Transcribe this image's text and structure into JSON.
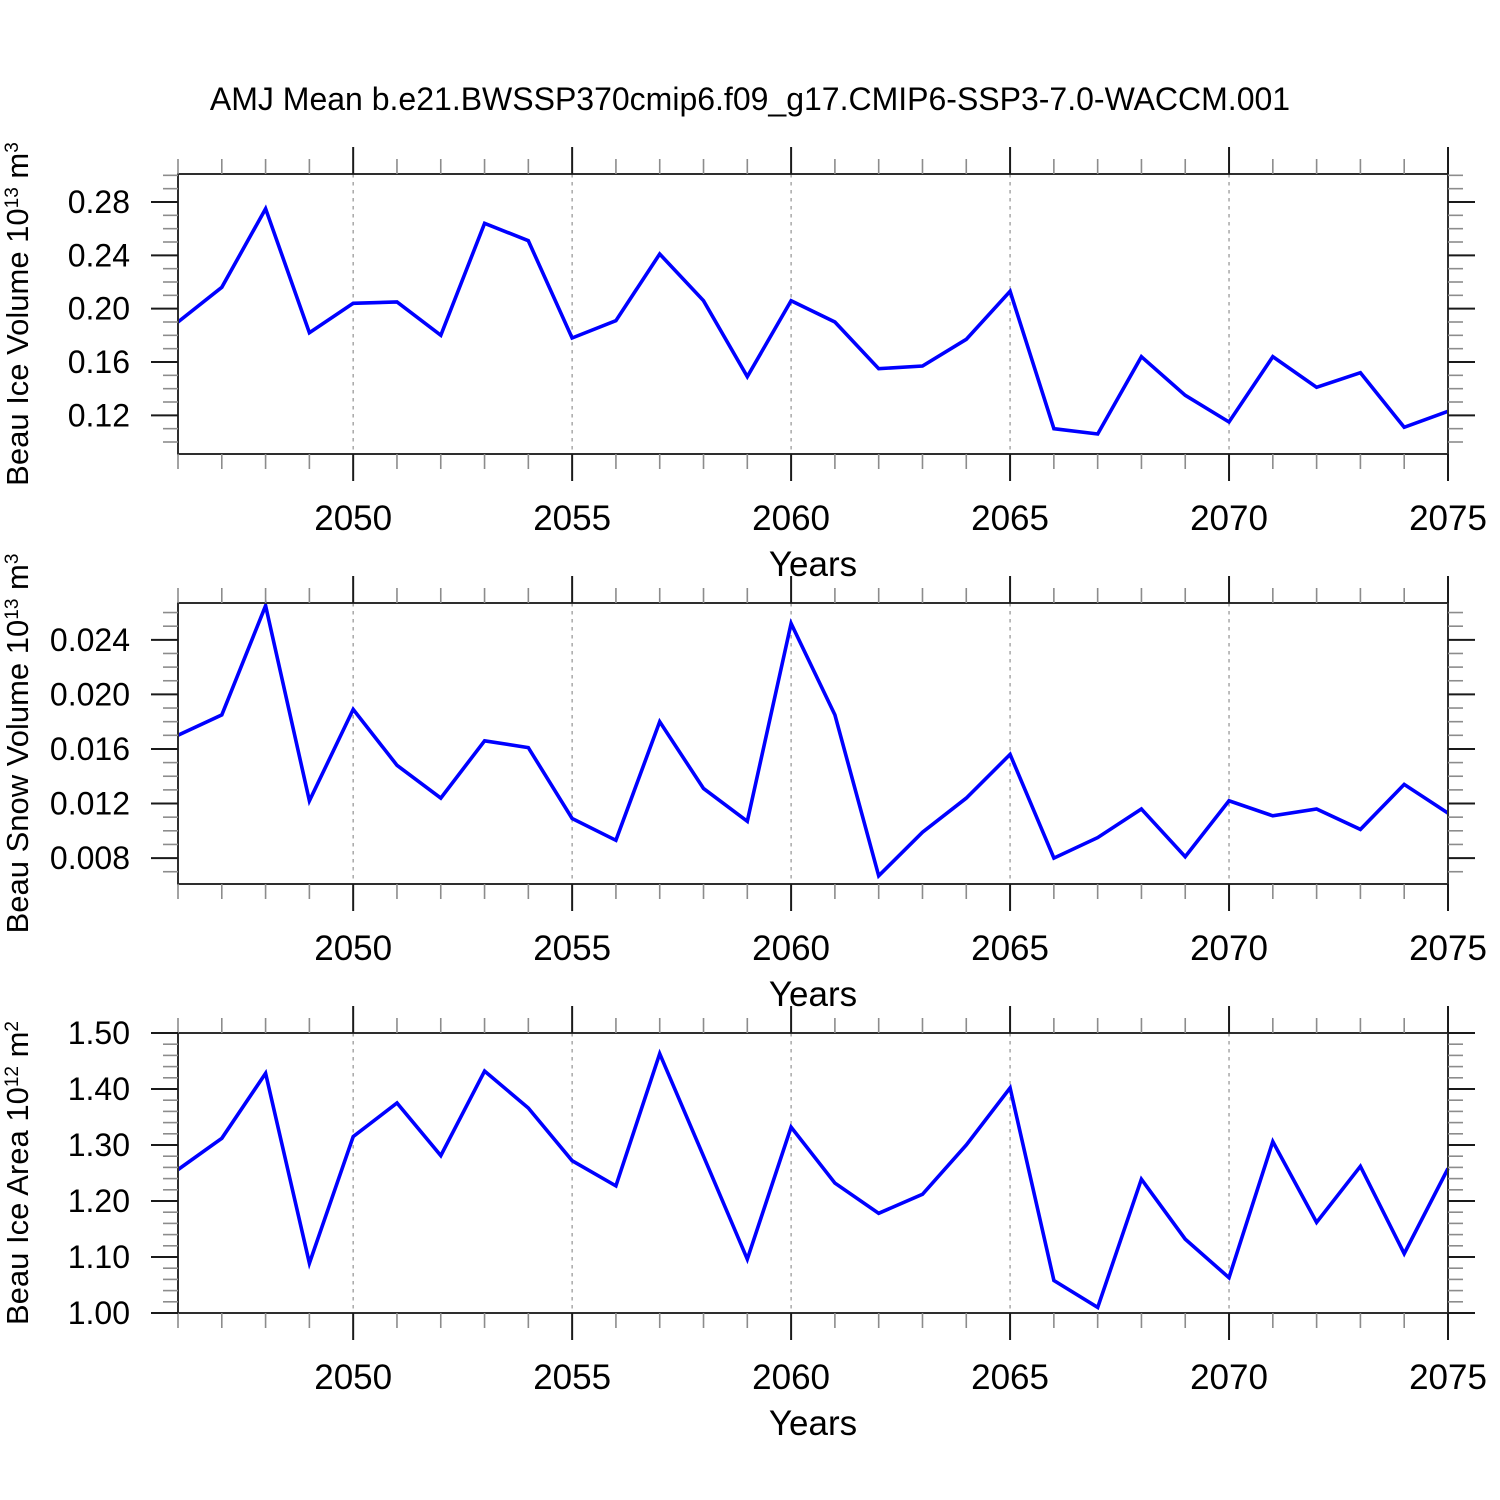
{
  "title": "AMJ Mean b.e21.BWSSP370cmip6.f09_g17.CMIP6-SSP3-7.0-WACCM.001",
  "colors": {
    "line": "#0000ff",
    "frame": "#2e2e2e",
    "major_tick": "#1a1a1a",
    "minor_tick": "#8c8c8c",
    "gridline": "#9a9a9a",
    "text": "#000000"
  },
  "x_axis": {
    "label": "Years",
    "range": [
      2046,
      2075
    ],
    "major_ticks": [
      2050,
      2055,
      2060,
      2065,
      2070,
      2075
    ],
    "major_tick_labels": [
      "2050",
      "2055",
      "2060",
      "2065",
      "2070",
      "2075"
    ],
    "minor_tick_step": 1,
    "grid_years": [
      2050,
      2055,
      2060,
      2065,
      2070
    ]
  },
  "chart_data": [
    {
      "type": "line",
      "title": "",
      "ylabel": "Beau Ice Volume 10^13 m^3",
      "ylabel_parts": [
        {
          "t": "Beau Ice Volume 10"
        },
        {
          "sup": "13"
        },
        {
          "t": " m"
        },
        {
          "sup": "3"
        }
      ],
      "xlabel": "Years",
      "legend": "none",
      "grid": "vertical-dashed",
      "ylim": [
        0.091,
        0.301
      ],
      "yticks": [
        0.12,
        0.16,
        0.2,
        0.24,
        0.28
      ],
      "ytick_labels": [
        "0.12",
        "0.16",
        "0.20",
        "0.24",
        "0.28"
      ],
      "y_minor_step": 0.01,
      "x": [
        2046,
        2047,
        2048,
        2049,
        2050,
        2051,
        2052,
        2053,
        2054,
        2055,
        2056,
        2057,
        2058,
        2059,
        2060,
        2061,
        2062,
        2063,
        2064,
        2065,
        2066,
        2067,
        2068,
        2069,
        2070,
        2071,
        2072,
        2073,
        2074,
        2075
      ],
      "y": [
        0.19,
        0.216,
        0.275,
        0.182,
        0.204,
        0.205,
        0.18,
        0.264,
        0.251,
        0.178,
        0.191,
        0.241,
        0.206,
        0.149,
        0.206,
        0.19,
        0.155,
        0.157,
        0.177,
        0.213,
        0.11,
        0.106,
        0.164,
        0.135,
        0.115,
        0.164,
        0.141,
        0.152,
        0.111,
        0.123
      ]
    },
    {
      "type": "line",
      "title": "",
      "ylabel": "Beau Snow Volume 10^13 m^3",
      "ylabel_parts": [
        {
          "t": "Beau Snow Volume 10"
        },
        {
          "sup": "13"
        },
        {
          "t": " m"
        },
        {
          "sup": "3"
        }
      ],
      "xlabel": "Years",
      "legend": "none",
      "grid": "vertical-dashed",
      "ylim": [
        0.0061,
        0.0267
      ],
      "yticks": [
        0.008,
        0.012,
        0.016,
        0.02,
        0.024
      ],
      "ytick_labels": [
        "0.008",
        "0.012",
        "0.016",
        "0.020",
        "0.024"
      ],
      "y_minor_step": 0.001,
      "x": [
        2046,
        2047,
        2048,
        2049,
        2050,
        2051,
        2052,
        2053,
        2054,
        2055,
        2056,
        2057,
        2058,
        2059,
        2060,
        2061,
        2062,
        2063,
        2064,
        2065,
        2066,
        2067,
        2068,
        2069,
        2070,
        2071,
        2072,
        2073,
        2074,
        2075
      ],
      "y": [
        0.017,
        0.0185,
        0.0265,
        0.0122,
        0.0189,
        0.0148,
        0.0124,
        0.0166,
        0.0161,
        0.0109,
        0.0093,
        0.018,
        0.0131,
        0.0107,
        0.0252,
        0.0185,
        0.0067,
        0.0099,
        0.0124,
        0.0156,
        0.008,
        0.0095,
        0.0116,
        0.0081,
        0.0122,
        0.0111,
        0.0116,
        0.0101,
        0.0134,
        0.0113
      ]
    },
    {
      "type": "line",
      "title": "",
      "ylabel": "Beau Ice Area 10^12 m^2",
      "ylabel_parts": [
        {
          "t": "Beau Ice Area 10"
        },
        {
          "sup": "12"
        },
        {
          "t": " m"
        },
        {
          "sup": "2"
        }
      ],
      "xlabel": "Years",
      "legend": "none",
      "grid": "vertical-dashed",
      "ylim": [
        1.0,
        1.5
      ],
      "yticks": [
        1.0,
        1.1,
        1.2,
        1.3,
        1.4,
        1.5
      ],
      "ytick_labels": [
        "1.00",
        "1.10",
        "1.20",
        "1.30",
        "1.40",
        "1.50"
      ],
      "y_minor_step": 0.02,
      "x": [
        2046,
        2047,
        2048,
        2049,
        2050,
        2051,
        2052,
        2053,
        2054,
        2055,
        2056,
        2057,
        2058,
        2059,
        2060,
        2061,
        2062,
        2063,
        2064,
        2065,
        2066,
        2067,
        2068,
        2069,
        2070,
        2071,
        2072,
        2073,
        2074,
        2075
      ],
      "y": [
        1.256,
        1.312,
        1.428,
        1.089,
        1.315,
        1.375,
        1.281,
        1.432,
        1.366,
        1.272,
        1.227,
        1.463,
        1.28,
        1.096,
        1.332,
        1.232,
        1.178,
        1.212,
        1.3,
        1.402,
        1.058,
        1.01,
        1.239,
        1.132,
        1.063,
        1.306,
        1.162,
        1.262,
        1.106,
        1.258
      ]
    }
  ]
}
